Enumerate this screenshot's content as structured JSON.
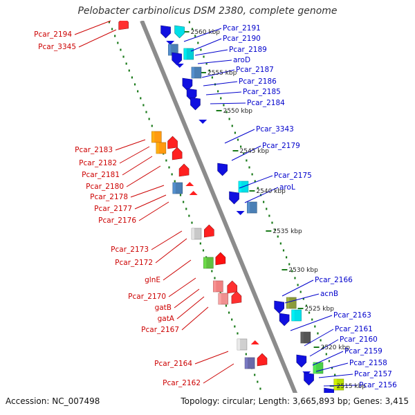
{
  "title": "Pelobacter carbinolicus DSM 2380, complete genome",
  "footer": {
    "accession": "Accession: NC_007498",
    "topology": "Topology: circular; Length: 3,665,893 bp; Genes: 3,415"
  },
  "colors": {
    "forward_label": "#0000cc",
    "reverse_label": "#cc0000",
    "backbone": "#8c8c8c",
    "tick": "#1a7a1a"
  },
  "scale_labels": [
    "2560 kbp",
    "2555 kbp",
    "2550 kbp",
    "2545 kbp",
    "2540 kbp",
    "2535 kbp",
    "2530 kbp",
    "2525 kbp",
    "2520 kbp",
    "2515 kbp"
  ],
  "forward_labels": [
    "Pcar_2191",
    "Pcar_2190",
    "Pcar_2189",
    "aroD",
    "Pcar_2187",
    "Pcar_2186",
    "Pcar_2185",
    "Pcar_2184",
    "Pcar_3343",
    "Pcar_2179",
    "Pcar_2175",
    "aroL",
    "Pcar_2166",
    "acnB",
    "Pcar_2163",
    "Pcar_2161",
    "Pcar_2160",
    "Pcar_2159",
    "Pcar_2158",
    "Pcar_2157",
    "Pcar_2156"
  ],
  "reverse_labels": [
    "Pcar_2194",
    "Pcar_3345",
    "Pcar_2183",
    "Pcar_2182",
    "Pcar_2181",
    "Pcar_2180",
    "Pcar_2178",
    "Pcar_2177",
    "Pcar_2176",
    "Pcar_2173",
    "Pcar_2172",
    "glnE",
    "Pcar_2170",
    "gatB",
    "gatA",
    "Pcar_2167",
    "Pcar_2164",
    "Pcar_2162"
  ],
  "forward_genes": [
    {
      "color": "#1010e0",
      "type": "arrow"
    },
    {
      "color": "#00e0e8",
      "type": "arrow"
    },
    {
      "color": "#1010e0",
      "type": "small"
    },
    {
      "color": "#00d0d8",
      "type": "box"
    },
    {
      "color": "#4a7fb5",
      "type": "box"
    },
    {
      "color": "#1010e0",
      "type": "arrow"
    },
    {
      "color": "#1010e0",
      "type": "small"
    },
    {
      "color": "#4a7fb5",
      "type": "box"
    },
    {
      "color": "#1010e0",
      "type": "arrow"
    },
    {
      "color": "#1010e0",
      "type": "arrow"
    },
    {
      "color": "#1010e0",
      "type": "arrow"
    },
    {
      "color": "#1010e0",
      "type": "small"
    },
    {
      "color": "#1010e0",
      "type": "arrow"
    },
    {
      "color": "#1010e0",
      "type": "arrow"
    },
    {
      "color": "#00e0e8",
      "type": "box"
    },
    {
      "color": "#4a7fb5",
      "type": "box"
    },
    {
      "color": "#1010e0",
      "type": "small"
    },
    {
      "color": "#1010e0",
      "type": "arrow"
    },
    {
      "color": "#8a9a3a",
      "type": "box"
    },
    {
      "color": "#00e0e8",
      "type": "box"
    },
    {
      "color": "#1010e0",
      "type": "arrow"
    },
    {
      "color": "#555555",
      "type": "box"
    },
    {
      "color": "#1010e0",
      "type": "arrow"
    },
    {
      "color": "#1010e0",
      "type": "small"
    },
    {
      "color": "#4ad04a",
      "type": "box"
    },
    {
      "color": "#1010e0",
      "type": "arrow"
    },
    {
      "color": "#b8e000",
      "type": "box"
    },
    {
      "color": "#1010e0",
      "type": "arrow"
    }
  ],
  "reverse_genes": [
    {
      "color": "#ff3030",
      "type": "arrow"
    },
    {
      "color": "#ff9a10",
      "type": "box"
    },
    {
      "color": "#ff9a10",
      "type": "box"
    },
    {
      "color": "#ff2020",
      "type": "arrow"
    },
    {
      "color": "#ff2020",
      "type": "arrow"
    },
    {
      "color": "#ff2020",
      "type": "arrow"
    },
    {
      "color": "#4a7fb5",
      "type": "box"
    },
    {
      "color": "#ff2020",
      "type": "small"
    },
    {
      "color": "#ff2020",
      "type": "small"
    },
    {
      "color": "#c8c8c8",
      "type": "box"
    },
    {
      "color": "#ff2020",
      "type": "arrow"
    },
    {
      "color": "#60c040",
      "type": "box"
    },
    {
      "color": "#ff1010",
      "type": "arrow"
    },
    {
      "color": "#f08080",
      "type": "box"
    },
    {
      "color": "#ff3030",
      "type": "arrow"
    },
    {
      "color": "#f09090",
      "type": "box"
    },
    {
      "color": "#ff3030",
      "type": "arrow"
    },
    {
      "color": "#d0d0d0",
      "type": "box"
    },
    {
      "color": "#ff2020",
      "type": "small"
    },
    {
      "color": "#6a6aaa",
      "type": "box"
    },
    {
      "color": "#ff2020",
      "type": "arrow"
    }
  ]
}
